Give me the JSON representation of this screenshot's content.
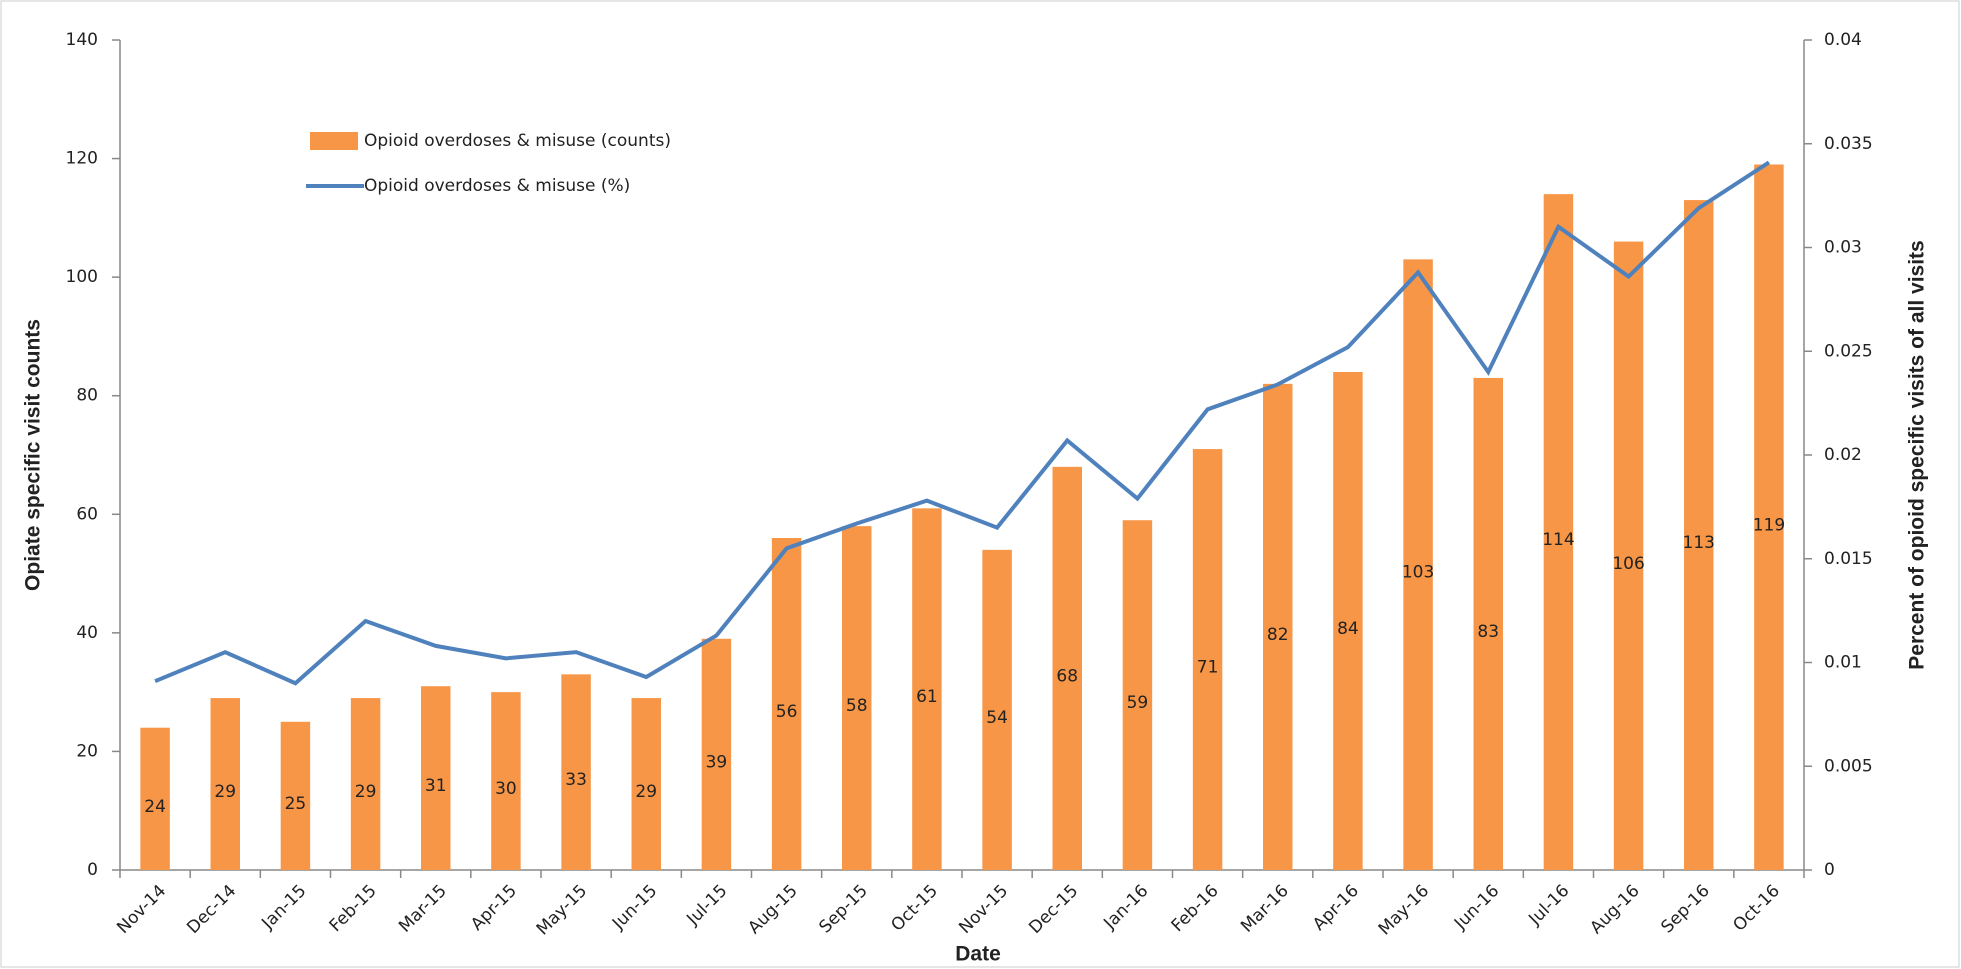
{
  "chart_data": {
    "type": "bar-line",
    "x_label": "Date",
    "y_label": "Opiate specific visit counts",
    "y2_label": "Percent of opioid specific visits of all visits",
    "categories": [
      "Nov-14",
      "Dec-14",
      "Jan-15",
      "Feb-15",
      "Mar-15",
      "Apr-15",
      "May-15",
      "Jun-15",
      "Jul-15",
      "Aug-15",
      "Sep-15",
      "Oct-15",
      "Nov-15",
      "Dec-15",
      "Jan-16",
      "Feb-16",
      "Mar-16",
      "Apr-16",
      "May-16",
      "Jun-16",
      "Jul-16",
      "Aug-16",
      "Sep-16",
      "Oct-16"
    ],
    "series": [
      {
        "name": "Opioid overdoses & misuse (counts)",
        "type": "bar",
        "color": "#f79646",
        "values": [
          24,
          29,
          25,
          29,
          31,
          30,
          33,
          29,
          39,
          56,
          58,
          61,
          54,
          68,
          59,
          71,
          82,
          84,
          103,
          83,
          114,
          106,
          113,
          119
        ]
      },
      {
        "name": "Opioid overdoses & misuse (%)",
        "type": "line",
        "axis": "y2",
        "color": "#4f81bd",
        "values": [
          0.0091,
          0.0105,
          0.009,
          0.012,
          0.0108,
          0.0102,
          0.0105,
          0.0093,
          0.0113,
          0.0155,
          0.0167,
          0.0178,
          0.0165,
          0.0207,
          0.0179,
          0.0222,
          0.0234,
          0.0252,
          0.0288,
          0.024,
          0.031,
          0.0286,
          0.0319,
          0.0341
        ]
      }
    ],
    "ylim": [
      0,
      140
    ],
    "yticks": [
      0,
      20,
      40,
      60,
      80,
      100,
      120,
      140
    ],
    "y2lim": [
      0,
      0.04
    ],
    "y2ticks": [
      0,
      0.005,
      0.01,
      0.015,
      0.02,
      0.025,
      0.03,
      0.035,
      0.04
    ],
    "legend": "upper left",
    "data_labels": true
  }
}
